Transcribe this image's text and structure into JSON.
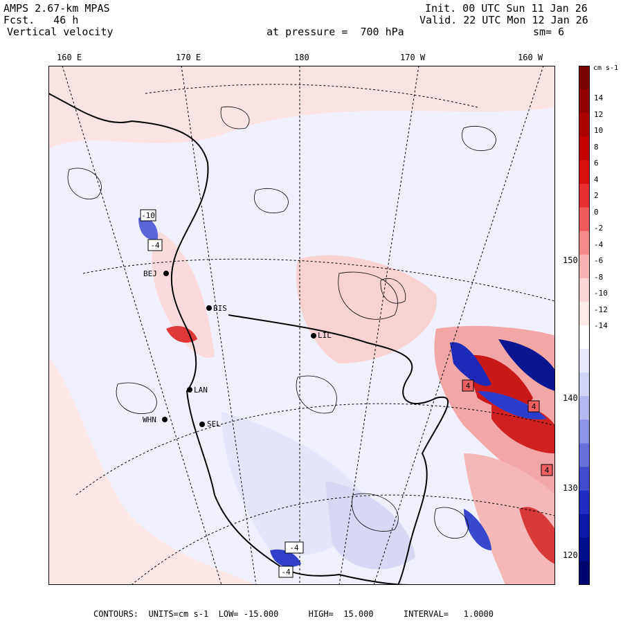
{
  "header": {
    "model": "AMPS 2.67-km MPAS",
    "fcst": "Fcst.   46 h",
    "field": "Vertical velocity",
    "init": "Init. 00 UTC Sun 11 Jan 26",
    "valid": "Valid. 22 UTC Mon 12 Jan 26",
    "pressure": "at pressure =  700 hPa",
    "smoothing": "sm= 6"
  },
  "longitude_labels": [
    "160 E",
    "170 E",
    "180",
    "170 W",
    "160 W"
  ],
  "latitude_labels": [
    "150 W",
    "140 W",
    "130 W",
    "120 W"
  ],
  "stations": [
    "BEJ",
    "BIS",
    "LIL",
    "LAN",
    "WHN",
    "SEL"
  ],
  "markers": [
    "-10",
    "-4",
    "4",
    "-4",
    "4",
    "-4",
    "4"
  ],
  "colorbar": {
    "unit": "cm s-1",
    "ticks": [
      "14",
      "12",
      "10",
      "8",
      "6",
      "4",
      "2",
      "0",
      "-2",
      "-4",
      "-6",
      "-8",
      "-10",
      "-12",
      "-14"
    ],
    "colors": [
      "#7a0000",
      "#940000",
      "#ad0000",
      "#c40000",
      "#d81010",
      "#e83030",
      "#f05a5a",
      "#f48a8a",
      "#f7b3b3",
      "#fbd6d6",
      "#ffeaea",
      "#ffffff",
      "#e8e8fb",
      "#d2d4f6",
      "#b3b8f0",
      "#8d93e6",
      "#6670da",
      "#404ccd",
      "#1e2cc0",
      "#0a18a8",
      "#000d8d",
      "#00066f"
    ]
  },
  "footer": {
    "text": "CONTOURS:  UNITS=cm s-1  LOW= -15.000      HIGH=  15.000      INTERVAL=   1.0000"
  }
}
